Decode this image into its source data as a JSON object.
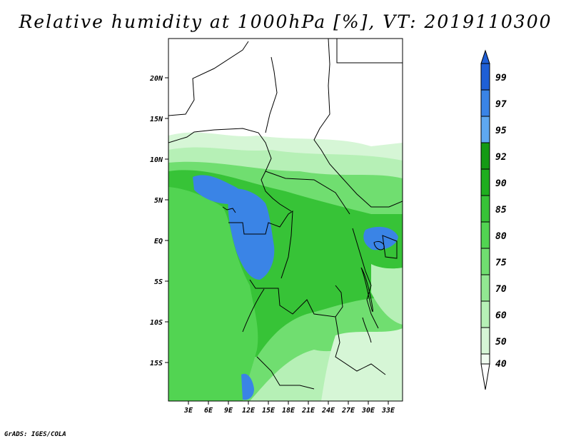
{
  "title": "Relative humidity at 1000hPa [%], VT: 2019110300",
  "credit": "GrADS: IGES/COLA",
  "lat_labels": [
    "20N",
    "15N",
    "10N",
    "5N",
    "EQ",
    "5S",
    "10S",
    "15S"
  ],
  "lon_labels": [
    "3E",
    "6E",
    "9E",
    "12E",
    "15E",
    "18E",
    "21E",
    "24E",
    "27E",
    "30E",
    "33E"
  ],
  "colorbar": {
    "levels": [
      "99",
      "97",
      "95",
      "92",
      "90",
      "85",
      "80",
      "75",
      "70",
      "60",
      "50",
      "40"
    ],
    "colors": [
      "#1f5fd6",
      "#3a84e6",
      "#5ea8f0",
      "#149a14",
      "#1fae1f",
      "#37c337",
      "#52d452",
      "#70de70",
      "#92e892",
      "#b6f0b6",
      "#d6f6d6",
      "#f0fcf0"
    ],
    "top_arrow_color": "#1f5fd6",
    "bottom_arrow_color": "#ffffff"
  },
  "map": {
    "ocean_color": "#52d452",
    "desert_color": "#ffffff",
    "humid_blue": "#3a84e6",
    "land_greens": [
      "#37c337",
      "#52d452",
      "#70de70",
      "#92e892",
      "#b6f0b6",
      "#d6f6d6"
    ]
  }
}
